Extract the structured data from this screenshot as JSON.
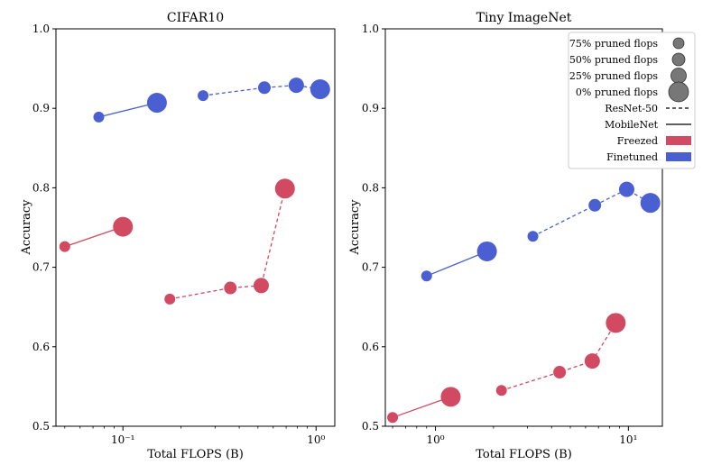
{
  "chart_data": [
    {
      "type": "scatter",
      "title": "CIFAR10",
      "xlabel": "Total FLOPS (B)",
      "ylabel": "Accuracy",
      "xscale": "log",
      "xlim": [
        0.045,
        1.25
      ],
      "ylim": [
        0.5,
        1.0
      ],
      "yticks": [
        0.5,
        0.6,
        0.7,
        0.8,
        0.9,
        1.0
      ],
      "ytick_labels": [
        "0.5",
        "0.6",
        "0.7",
        "0.8",
        "0.9",
        "1.0"
      ],
      "xticks": [
        0.1,
        1
      ],
      "xtick_labels": [
        "10⁻¹",
        "10⁰"
      ],
      "series": [
        {
          "name": "MobileNet Finetuned",
          "model": "MobileNet",
          "mode": "Finetuned",
          "linestyle": "solid",
          "color": "#4a5fd1",
          "points": [
            {
              "x": 0.075,
              "y": 0.889,
              "pruned": 75
            },
            {
              "x": 0.15,
              "y": 0.907,
              "pruned": 0
            }
          ]
        },
        {
          "name": "ResNet-50 Finetuned",
          "model": "ResNet-50",
          "mode": "Finetuned",
          "linestyle": "dashed",
          "color": "#4a5fd1",
          "points": [
            {
              "x": 0.26,
              "y": 0.916,
              "pruned": 75
            },
            {
              "x": 0.54,
              "y": 0.926,
              "pruned": 50
            },
            {
              "x": 0.79,
              "y": 0.929,
              "pruned": 25
            },
            {
              "x": 1.05,
              "y": 0.924,
              "pruned": 0
            }
          ]
        },
        {
          "name": "MobileNet Freezed",
          "model": "MobileNet",
          "mode": "Freezed",
          "linestyle": "solid",
          "color": "#d14a62",
          "points": [
            {
              "x": 0.05,
              "y": 0.726,
              "pruned": 75
            },
            {
              "x": 0.1,
              "y": 0.751,
              "pruned": 0
            }
          ]
        },
        {
          "name": "ResNet-50 Freezed",
          "model": "ResNet-50",
          "mode": "Freezed",
          "linestyle": "dashed",
          "color": "#d14a62",
          "points": [
            {
              "x": 0.175,
              "y": 0.66,
              "pruned": 75
            },
            {
              "x": 0.36,
              "y": 0.674,
              "pruned": 50
            },
            {
              "x": 0.52,
              "y": 0.677,
              "pruned": 25
            },
            {
              "x": 0.69,
              "y": 0.799,
              "pruned": 0
            }
          ]
        }
      ]
    },
    {
      "type": "scatter",
      "title": "Tiny ImageNet",
      "xlabel": "Total FLOPS (B)",
      "ylabel": "Accuracy",
      "xscale": "log",
      "xlim": [
        0.55,
        15
      ],
      "ylim": [
        0.5,
        1.0
      ],
      "yticks": [
        0.5,
        0.6,
        0.7,
        0.8,
        0.9,
        1.0
      ],
      "ytick_labels": [
        "0.5",
        "0.6",
        "0.7",
        "0.8",
        "0.9",
        "1.0"
      ],
      "xticks": [
        1,
        10
      ],
      "xtick_labels": [
        "10⁰",
        "10¹"
      ],
      "series": [
        {
          "name": "MobileNet Finetuned",
          "model": "MobileNet",
          "mode": "Finetuned",
          "linestyle": "solid",
          "color": "#4a5fd1",
          "points": [
            {
              "x": 0.9,
              "y": 0.689,
              "pruned": 75
            },
            {
              "x": 1.85,
              "y": 0.72,
              "pruned": 0
            }
          ]
        },
        {
          "name": "ResNet-50 Finetuned",
          "model": "ResNet-50",
          "mode": "Finetuned",
          "linestyle": "dashed",
          "color": "#4a5fd1",
          "points": [
            {
              "x": 3.2,
              "y": 0.739,
              "pruned": 75
            },
            {
              "x": 6.7,
              "y": 0.778,
              "pruned": 50
            },
            {
              "x": 9.8,
              "y": 0.798,
              "pruned": 25
            },
            {
              "x": 13,
              "y": 0.781,
              "pruned": 0
            }
          ]
        },
        {
          "name": "MobileNet Freezed",
          "model": "MobileNet",
          "mode": "Freezed",
          "linestyle": "solid",
          "color": "#d14a62",
          "points": [
            {
              "x": 0.6,
              "y": 0.511,
              "pruned": 75
            },
            {
              "x": 1.2,
              "y": 0.537,
              "pruned": 0
            }
          ]
        },
        {
          "name": "ResNet-50 Freezed",
          "model": "ResNet-50",
          "mode": "Freezed",
          "linestyle": "dashed",
          "color": "#d14a62",
          "points": [
            {
              "x": 2.2,
              "y": 0.545,
              "pruned": 75
            },
            {
              "x": 4.4,
              "y": 0.568,
              "pruned": 50
            },
            {
              "x": 6.5,
              "y": 0.582,
              "pruned": 25
            },
            {
              "x": 8.6,
              "y": 0.63,
              "pruned": 0
            }
          ]
        }
      ]
    }
  ],
  "legend": {
    "location": "top-right of Tiny ImageNet panel",
    "items": [
      {
        "label": "75% pruned flops",
        "kind": "marker",
        "pruned": 75
      },
      {
        "label": "50% pruned flops",
        "kind": "marker",
        "pruned": 50
      },
      {
        "label": "25% pruned flops",
        "kind": "marker",
        "pruned": 25
      },
      {
        "label": "0% pruned flops",
        "kind": "marker",
        "pruned": 0
      },
      {
        "label": "ResNet-50",
        "kind": "line",
        "linestyle": "dashed"
      },
      {
        "label": "MobileNet",
        "kind": "line",
        "linestyle": "solid"
      },
      {
        "label": "Freezed",
        "kind": "patch",
        "color": "#d14a62"
      },
      {
        "label": "Finetuned",
        "kind": "patch",
        "color": "#4a5fd1"
      }
    ]
  }
}
